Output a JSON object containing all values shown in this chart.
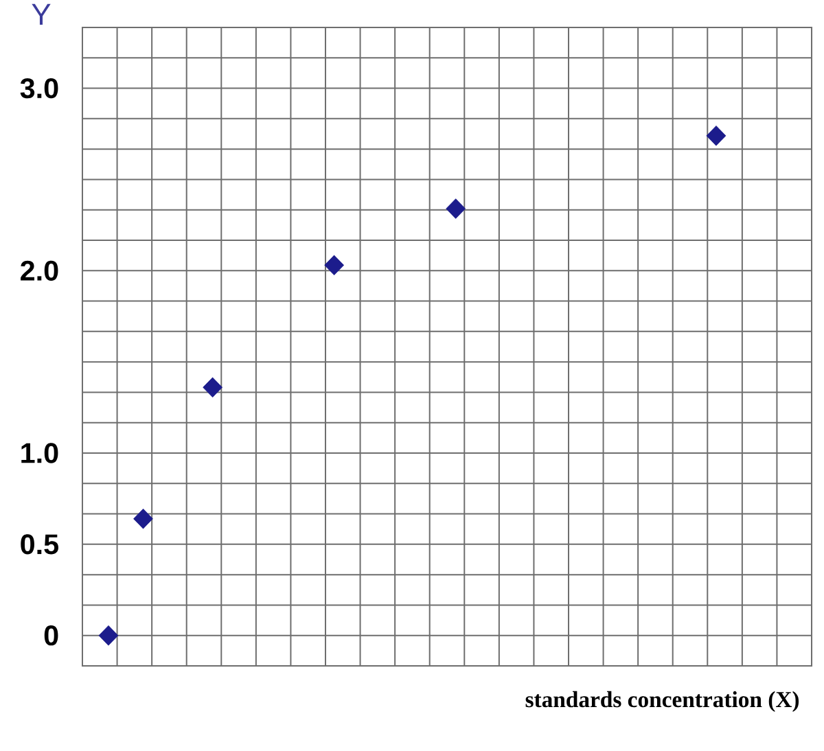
{
  "chart_data": {
    "type": "scatter",
    "xlabel": "standards concentration (X)",
    "ylabel": "Y",
    "categories": [
      null,
      null,
      null,
      null,
      null,
      null,
      null,
      null,
      null,
      null,
      null,
      null,
      null,
      null,
      null,
      null,
      null,
      null,
      null,
      null,
      null,
      null,
      null,
      null,
      null,
      null,
      null,
      null,
      null,
      null,
      null,
      null,
      null,
      null,
      null,
      null,
      null,
      null,
      null,
      null,
      null,
      null
    ],
    "values": [
      null,
      0,
      null,
      0.64,
      null,
      null,
      null,
      1.36,
      null,
      null,
      null,
      null,
      null,
      null,
      2.03,
      null,
      null,
      null,
      null,
      null,
      null,
      2.34,
      null,
      null,
      null,
      null,
      null,
      null,
      null,
      null,
      null,
      null,
      null,
      null,
      null,
      null,
      2.74,
      null,
      null,
      null,
      null,
      null
    ],
    "color": "#1c1c8c",
    "marker": "diamond",
    "grid": true,
    "tick_labels": "y",
    "ylim": [
      -0.1667,
      3.3333
    ],
    "yticks": [
      {
        "value": -0.1667,
        "label": null
      },
      0,
      {
        "value": 0.1667,
        "label": null
      },
      {
        "value": 0.3333,
        "label": null
      },
      0.5,
      {
        "value": 0.6667,
        "label": null
      },
      {
        "value": 0.8333,
        "label": null
      },
      {
        "value": 1,
        "label": "1.0"
      },
      {
        "value": 1.1667,
        "label": null
      },
      {
        "value": 1.3333,
        "label": null
      },
      {
        "value": 1.5,
        "label": null
      },
      {
        "value": 1.6667,
        "label": null
      },
      {
        "value": 1.8333,
        "label": null
      },
      {
        "value": 2,
        "label": "2.0"
      },
      {
        "value": 2.1667,
        "label": null
      },
      {
        "value": 2.3333,
        "label": null
      },
      {
        "value": 2.5,
        "label": null
      },
      {
        "value": 2.6667,
        "label": null
      },
      {
        "value": 2.8333,
        "label": null
      },
      {
        "value": 3,
        "label": "3.0"
      },
      {
        "value": 3.1667,
        "label": null
      },
      {
        "value": 3.3333,
        "label": null
      }
    ]
  }
}
